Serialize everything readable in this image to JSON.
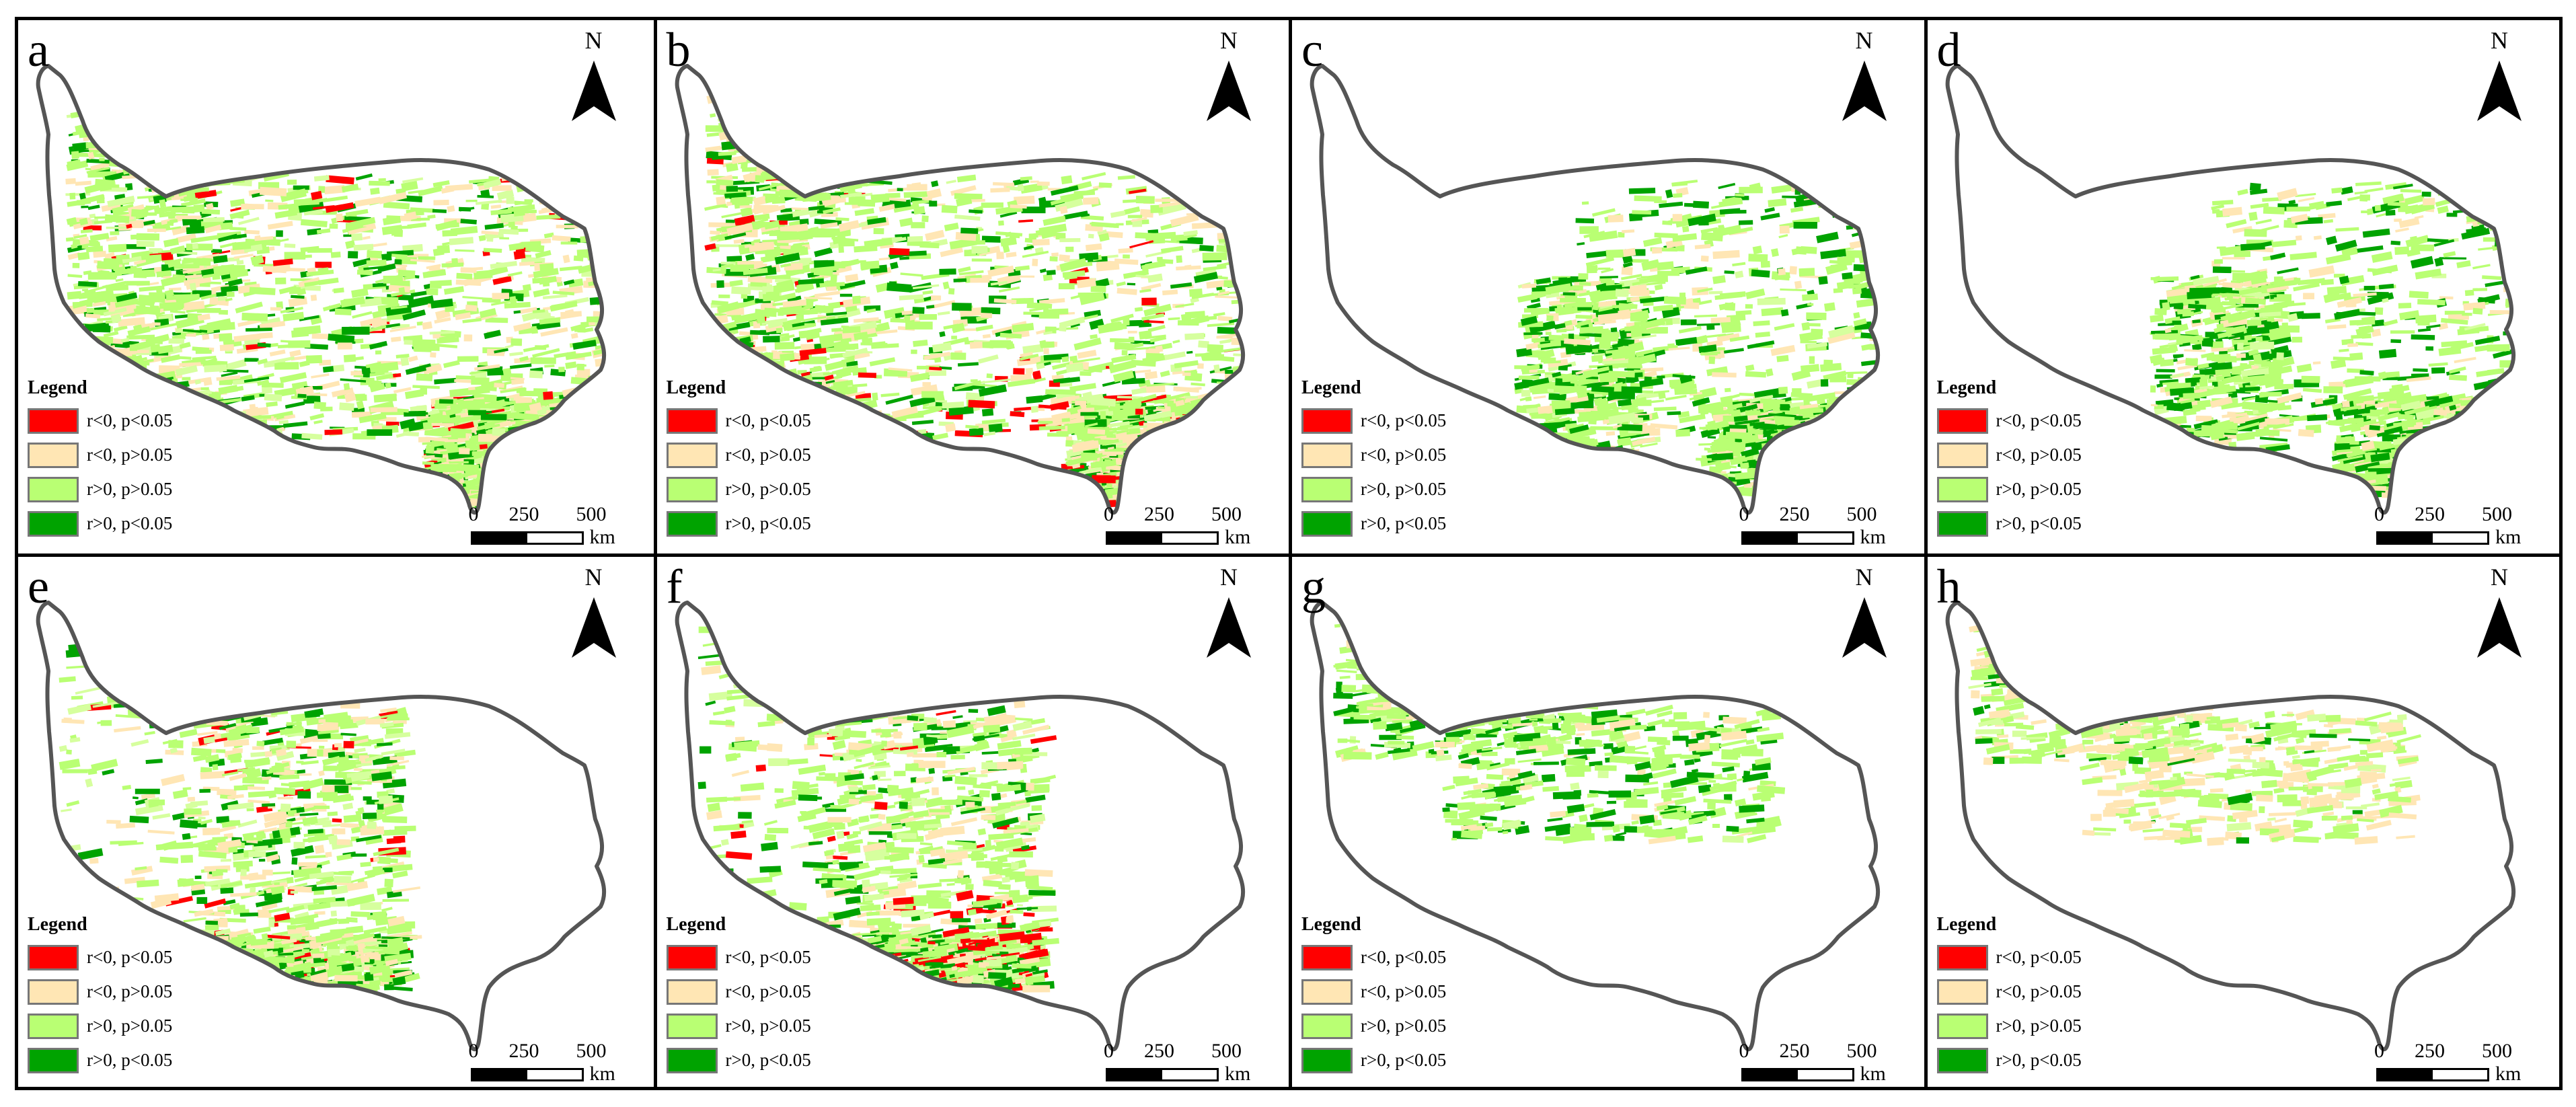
{
  "north_label": "N",
  "legend": {
    "title": "Legend",
    "items": [
      {
        "label": "r<0, p<0.05",
        "color": "#ff0000"
      },
      {
        "label": "r<0, p>0.05",
        "color": "#ffe6b4"
      },
      {
        "label": "r>0, p>0.05",
        "color": "#b9ff73"
      },
      {
        "label": "r>0, p<0.05",
        "color": "#00a300"
      }
    ]
  },
  "scale": {
    "ticks": [
      "0",
      "250",
      "500"
    ],
    "unit": "km"
  },
  "boundary_color": "#555555",
  "panels": [
    {
      "letter": "a",
      "coverage": "full",
      "dominant": "mixed green"
    },
    {
      "letter": "b",
      "coverage": "full",
      "dominant": "mixed green, red south"
    },
    {
      "letter": "c",
      "coverage": "east",
      "dominant": "green"
    },
    {
      "letter": "d",
      "coverage": "east",
      "dominant": "green"
    },
    {
      "letter": "e",
      "coverage": "west",
      "dominant": "mixed"
    },
    {
      "letter": "f",
      "coverage": "west",
      "dominant": "mixed, red south"
    },
    {
      "letter": "g",
      "coverage": "north",
      "dominant": "green"
    },
    {
      "letter": "h",
      "coverage": "north",
      "dominant": "light"
    }
  ]
}
